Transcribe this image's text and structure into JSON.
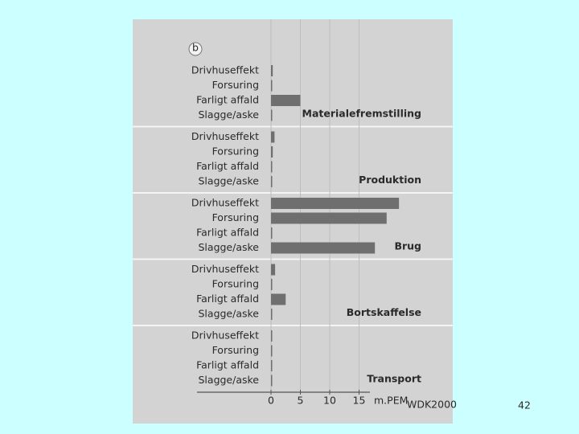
{
  "chart_data": {
    "type": "bar",
    "orientation": "horizontal",
    "panel_label": "b",
    "groups": [
      {
        "name": "Materialefremstilling",
        "categories": [
          "Drivhuseffekt",
          "Forsuring",
          "Farligt affald",
          "Slagge/aske"
        ],
        "values": [
          0.3,
          0.2,
          5,
          0
        ]
      },
      {
        "name": "Produktion",
        "categories": [
          "Drivhuseffekt",
          "Forsuring",
          "Farligt affald",
          "Slagge/aske"
        ],
        "values": [
          0.6,
          0.3,
          0.1,
          0.2
        ]
      },
      {
        "name": "Brug",
        "categories": [
          "Drivhuseffekt",
          "Forsuring",
          "Farligt affald",
          "Slagge/aske"
        ],
        "values": [
          21.8,
          19.7,
          0,
          17.7
        ]
      },
      {
        "name": "Bortskaffelse",
        "categories": [
          "Drivhuseffekt",
          "Forsuring",
          "Farligt affald",
          "Slagge/aske"
        ],
        "values": [
          0.7,
          0.1,
          2.5,
          0
        ]
      },
      {
        "name": "Transport",
        "categories": [
          "Drivhuseffekt",
          "Forsuring",
          "Farligt affald",
          "Slagge/aske"
        ],
        "values": [
          0.2,
          0.2,
          0,
          0
        ]
      }
    ],
    "color": "#6f6f6f",
    "xlim": [
      0,
      30
    ],
    "xticks": [
      0,
      5,
      10,
      15
    ],
    "xlabel": "m.PEM",
    "xlabel_sub": "WDK2000",
    "grid": true
  },
  "page_number": "42"
}
